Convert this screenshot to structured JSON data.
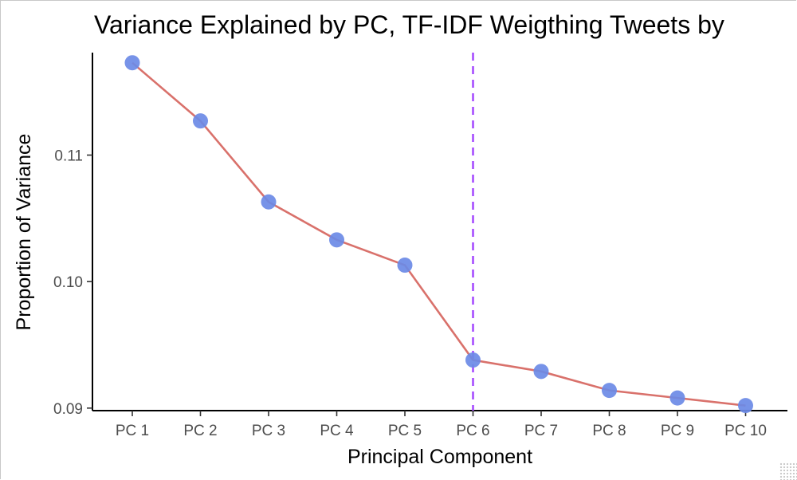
{
  "chart_data": {
    "type": "line",
    "title": "Variance Explained by PC, TF-IDF Weigthing Tweets by",
    "xlabel": "Principal Component",
    "ylabel": "Proportion of Variance",
    "categories": [
      "PC 1",
      "PC 2",
      "PC 3",
      "PC 4",
      "PC 5",
      "PC 6",
      "PC 7",
      "PC 8",
      "PC 9",
      "PC 10"
    ],
    "values": [
      0.1173,
      0.1127,
      0.1063,
      0.1033,
      0.1013,
      0.0938,
      0.0929,
      0.0914,
      0.0908,
      0.0902
    ],
    "ylim": [
      0.0898,
      0.1181
    ],
    "yticks": [
      0.09,
      0.1,
      0.11
    ],
    "ytick_labels": [
      "0.09",
      "0.10",
      "0.11"
    ],
    "cutoff_category": "PC 6",
    "grid": false,
    "legend": "none",
    "colors": {
      "line": "#d9716b",
      "point": "#6b8ae6",
      "cutoff": "#a64dff"
    }
  }
}
